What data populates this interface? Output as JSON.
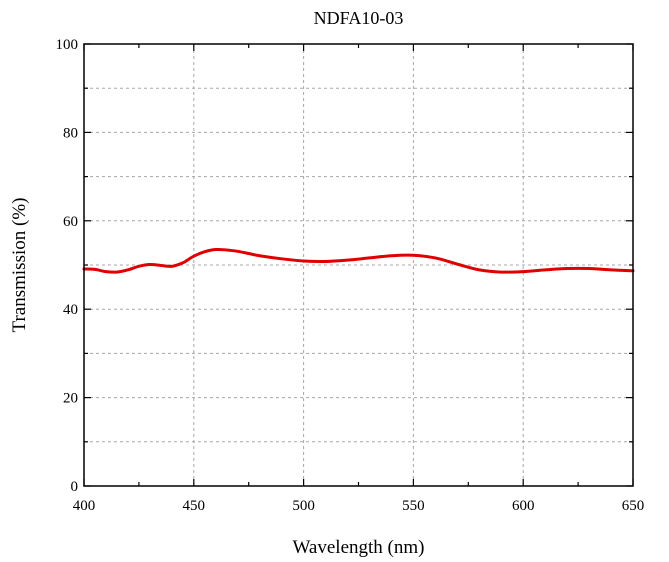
{
  "chart_data": {
    "type": "line",
    "title": "NDFA10-03",
    "xlabel": "Wavelength (nm)",
    "ylabel": "Transmission (%)",
    "xlim": [
      400,
      650
    ],
    "ylim": [
      0,
      100
    ],
    "x_ticks": [
      "400",
      "450",
      "500",
      "550",
      "600",
      "650"
    ],
    "y_ticks": [
      "0",
      "20",
      "40",
      "60",
      "80",
      "100"
    ],
    "grid": true,
    "series": [
      {
        "color": "#e00000",
        "x": [
          400,
          405,
          410,
          415,
          420,
          425,
          430,
          435,
          440,
          445,
          450,
          455,
          460,
          465,
          470,
          475,
          480,
          490,
          500,
          510,
          520,
          530,
          540,
          550,
          560,
          570,
          580,
          590,
          600,
          610,
          620,
          630,
          640,
          650
        ],
        "y": [
          49.1,
          49.0,
          48.5,
          48.4,
          48.9,
          49.7,
          50.1,
          49.9,
          49.7,
          50.5,
          52.0,
          53.0,
          53.5,
          53.4,
          53.1,
          52.6,
          52.1,
          51.4,
          50.9,
          50.8,
          51.1,
          51.6,
          52.1,
          52.2,
          51.6,
          50.2,
          48.9,
          48.4,
          48.5,
          48.9,
          49.2,
          49.2,
          48.9,
          48.7
        ]
      }
    ]
  }
}
